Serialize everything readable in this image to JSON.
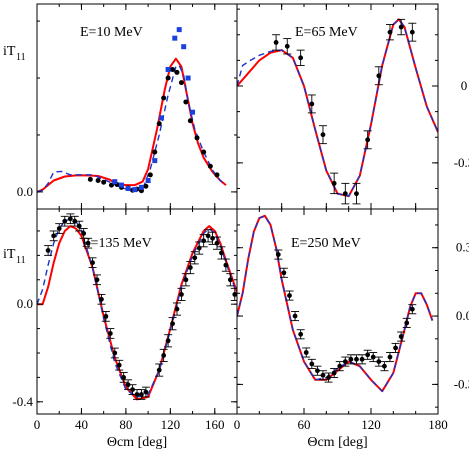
{
  "chart_data": [
    {
      "type": "line",
      "panel": "top-left",
      "annotation": "E=10 MeV",
      "ylabel": "iT",
      "ylabel_sub": "11",
      "xlim": [
        0,
        180
      ],
      "ylim": [
        -0.03,
        0.33
      ],
      "y_ticks": [
        {
          "v": 0.0,
          "label": "0.0"
        }
      ],
      "x_ticks": [
        0,
        40,
        80,
        120,
        160
      ],
      "series": [
        {
          "role": "red-solid",
          "x": [
            0,
            5,
            15,
            25,
            35,
            45,
            55,
            65,
            72,
            80,
            88,
            95,
            100,
            108,
            115,
            120,
            125,
            130,
            135,
            140,
            145,
            150,
            158,
            165,
            170
          ],
          "y": [
            0.0,
            0.004,
            0.02,
            0.027,
            0.029,
            0.029,
            0.028,
            0.022,
            0.014,
            0.012,
            0.012,
            0.018,
            0.04,
            0.11,
            0.18,
            0.22,
            0.234,
            0.22,
            0.17,
            0.12,
            0.085,
            0.06,
            0.035,
            0.02,
            0.012
          ]
        },
        {
          "role": "blue-dashed",
          "x": [
            0,
            5,
            10,
            15,
            22,
            30,
            40,
            50,
            60,
            68,
            75,
            82,
            90,
            96,
            102,
            110,
            118,
            125,
            128,
            132,
            136,
            142,
            150,
            158,
            165,
            170
          ],
          "y": [
            0.0,
            0.003,
            0.015,
            0.035,
            0.036,
            0.03,
            0.03,
            0.03,
            0.022,
            0.015,
            0.008,
            0.004,
            0.003,
            0.01,
            0.04,
            0.1,
            0.17,
            0.22,
            0.222,
            0.205,
            0.16,
            0.11,
            0.07,
            0.038,
            0.02,
            0.012
          ]
        },
        {
          "role": "black-points",
          "x": [
            48,
            55,
            60,
            67,
            72,
            76,
            82,
            86,
            90,
            94,
            98,
            102,
            106,
            110,
            114,
            118,
            122,
            126,
            130,
            134,
            138,
            144,
            150,
            156,
            162
          ],
          "y": [
            0.022,
            0.02,
            0.017,
            0.012,
            0.013,
            0.008,
            0.007,
            0.003,
            0.005,
            0.002,
            0.01,
            0.03,
            0.07,
            0.12,
            0.165,
            0.2,
            0.215,
            0.21,
            0.192,
            0.158,
            0.125,
            0.095,
            0.07,
            0.045,
            0.03
          ]
        },
        {
          "role": "blue-squares",
          "x": [
            70,
            76,
            82,
            88,
            94,
            100,
            106,
            112,
            118,
            124,
            128,
            132,
            136,
            140
          ],
          "y": [
            0.018,
            0.012,
            0.006,
            0.004,
            0.008,
            0.02,
            0.055,
            0.13,
            0.215,
            0.27,
            0.285,
            0.255,
            0.2,
            0.14
          ]
        }
      ]
    },
    {
      "type": "line",
      "panel": "top-right",
      "annotation": "E=65 MeV",
      "xlim": [
        0,
        180
      ],
      "ylim": [
        -0.48,
        0.32
      ],
      "y_ticks": [
        {
          "v": 0.0,
          "label": "0"
        },
        {
          "v": -0.3,
          "label": "-0.3"
        }
      ],
      "x_ticks": [
        0,
        40,
        80,
        120,
        160
      ],
      "series": [
        {
          "role": "red-solid",
          "x": [
            0,
            10,
            20,
            30,
            40,
            50,
            60,
            70,
            80,
            90,
            100,
            110,
            120,
            130,
            140,
            145,
            150,
            160,
            170,
            180
          ],
          "y": [
            0.0,
            0.05,
            0.1,
            0.13,
            0.14,
            0.11,
            0.0,
            -0.17,
            -0.33,
            -0.42,
            -0.43,
            -0.35,
            -0.15,
            0.08,
            0.24,
            0.26,
            0.23,
            0.07,
            -0.08,
            -0.18
          ]
        },
        {
          "role": "blue-dashed",
          "x": [
            0,
            5,
            12,
            20,
            30,
            40,
            50,
            60,
            70,
            80,
            90,
            100,
            110,
            120,
            130,
            140,
            145,
            150,
            160,
            170,
            180
          ],
          "y": [
            0.0,
            0.08,
            0.1,
            0.12,
            0.135,
            0.14,
            0.11,
            0.0,
            -0.17,
            -0.33,
            -0.42,
            -0.43,
            -0.35,
            -0.15,
            0.08,
            0.24,
            0.26,
            0.23,
            0.07,
            -0.08,
            -0.18
          ]
        }
      ],
      "points": [
        {
          "x": 35,
          "y": 0.17,
          "err": 0.03
        },
        {
          "x": 45,
          "y": 0.155,
          "err": 0.03
        },
        {
          "x": 57,
          "y": 0.11,
          "err": 0.03
        },
        {
          "x": 67,
          "y": -0.07,
          "err": 0.035
        },
        {
          "x": 77,
          "y": -0.19,
          "err": 0.035
        },
        {
          "x": 87,
          "y": -0.38,
          "err": 0.04
        },
        {
          "x": 97,
          "y": -0.42,
          "err": 0.04
        },
        {
          "x": 107,
          "y": -0.42,
          "err": 0.04
        },
        {
          "x": 117,
          "y": -0.21,
          "err": 0.035
        },
        {
          "x": 127,
          "y": 0.04,
          "err": 0.035
        },
        {
          "x": 137,
          "y": 0.21,
          "err": 0.03
        },
        {
          "x": 147,
          "y": 0.23,
          "err": 0.03
        },
        {
          "x": 157,
          "y": 0.21,
          "err": 0.035
        }
      ]
    },
    {
      "type": "line",
      "panel": "bottom-left",
      "annotation": "E=135 MeV",
      "ylabel": "iT",
      "ylabel_sub": "11",
      "xlabel": "Θcm [deg]",
      "xlim": [
        0,
        180
      ],
      "ylim": [
        -0.45,
        0.39
      ],
      "y_ticks": [
        {
          "v": 0.0,
          "label": "0.0"
        },
        {
          "v": -0.4,
          "label": "-0.4"
        }
      ],
      "x_ticks": [
        {
          "v": 0,
          "label": "0"
        },
        {
          "v": 40,
          "label": "40"
        },
        {
          "v": 80,
          "label": "80"
        },
        {
          "v": 120,
          "label": "120"
        },
        {
          "v": 160,
          "label": "160"
        }
      ],
      "series": [
        {
          "role": "red-solid",
          "x": [
            0,
            5,
            10,
            15,
            20,
            25,
            30,
            35,
            40,
            50,
            60,
            70,
            80,
            90,
            100,
            110,
            120,
            130,
            140,
            150,
            155,
            160,
            165,
            170,
            180
          ],
          "y": [
            0.0,
            0.0,
            0.07,
            0.17,
            0.25,
            0.3,
            0.32,
            0.31,
            0.28,
            0.15,
            -0.05,
            -0.22,
            -0.34,
            -0.39,
            -0.38,
            -0.27,
            -0.1,
            0.08,
            0.21,
            0.3,
            0.32,
            0.3,
            0.25,
            0.18,
            0.05
          ]
        },
        {
          "role": "blue-dashed",
          "x": [
            0,
            5,
            10,
            15,
            20,
            25,
            30,
            35,
            40,
            50,
            60,
            70,
            80,
            90,
            100,
            110,
            120,
            130,
            140,
            150,
            155,
            160,
            165,
            170,
            180
          ],
          "y": [
            0.0,
            0.06,
            0.16,
            0.25,
            0.31,
            0.34,
            0.35,
            0.34,
            0.3,
            0.15,
            -0.06,
            -0.24,
            -0.35,
            -0.38,
            -0.37,
            -0.27,
            -0.11,
            0.07,
            0.2,
            0.29,
            0.31,
            0.29,
            0.24,
            0.17,
            0.04
          ]
        }
      ],
      "points": [
        {
          "x": 10,
          "y": 0.22,
          "err": 0.02
        },
        {
          "x": 15,
          "y": 0.28,
          "err": 0.02
        },
        {
          "x": 20,
          "y": 0.31,
          "err": 0.02
        },
        {
          "x": 25,
          "y": 0.34,
          "err": 0.02
        },
        {
          "x": 30,
          "y": 0.35,
          "err": 0.02
        },
        {
          "x": 34,
          "y": 0.34,
          "err": 0.02
        },
        {
          "x": 38,
          "y": 0.32,
          "err": 0.02
        },
        {
          "x": 42,
          "y": 0.29,
          "err": 0.02
        },
        {
          "x": 46,
          "y": 0.25,
          "err": 0.02
        },
        {
          "x": 50,
          "y": 0.17,
          "err": 0.02
        },
        {
          "x": 54,
          "y": 0.1,
          "err": 0.02
        },
        {
          "x": 58,
          "y": 0.02,
          "err": 0.02
        },
        {
          "x": 62,
          "y": -0.05,
          "err": 0.02
        },
        {
          "x": 66,
          "y": -0.12,
          "err": 0.02
        },
        {
          "x": 70,
          "y": -0.2,
          "err": 0.02
        },
        {
          "x": 74,
          "y": -0.25,
          "err": 0.02
        },
        {
          "x": 78,
          "y": -0.3,
          "err": 0.02
        },
        {
          "x": 82,
          "y": -0.33,
          "err": 0.02
        },
        {
          "x": 86,
          "y": -0.35,
          "err": 0.02
        },
        {
          "x": 90,
          "y": -0.37,
          "err": 0.02
        },
        {
          "x": 94,
          "y": -0.37,
          "err": 0.02
        },
        {
          "x": 98,
          "y": -0.36,
          "err": 0.02
        },
        {
          "x": 110,
          "y": -0.27,
          "err": 0.025
        },
        {
          "x": 114,
          "y": -0.21,
          "err": 0.025
        },
        {
          "x": 118,
          "y": -0.15,
          "err": 0.025
        },
        {
          "x": 122,
          "y": -0.08,
          "err": 0.025
        },
        {
          "x": 126,
          "y": -0.02,
          "err": 0.025
        },
        {
          "x": 130,
          "y": 0.04,
          "err": 0.025
        },
        {
          "x": 134,
          "y": 0.1,
          "err": 0.025
        },
        {
          "x": 138,
          "y": 0.15,
          "err": 0.025
        },
        {
          "x": 142,
          "y": 0.19,
          "err": 0.025
        },
        {
          "x": 146,
          "y": 0.23,
          "err": 0.025
        },
        {
          "x": 150,
          "y": 0.26,
          "err": 0.025
        },
        {
          "x": 154,
          "y": 0.28,
          "err": 0.025
        },
        {
          "x": 158,
          "y": 0.27,
          "err": 0.025
        },
        {
          "x": 162,
          "y": 0.25,
          "err": 0.025
        },
        {
          "x": 166,
          "y": 0.21,
          "err": 0.025
        },
        {
          "x": 170,
          "y": 0.16,
          "err": 0.025
        },
        {
          "x": 174,
          "y": 0.1,
          "err": 0.025
        },
        {
          "x": 178,
          "y": 0.04,
          "err": 0.025
        }
      ]
    },
    {
      "type": "line",
      "panel": "bottom-right",
      "annotation": "E=250 MeV",
      "xlabel": "Θcm [deg]",
      "xlim": [
        0,
        180
      ],
      "ylim": [
        -0.43,
        0.47
      ],
      "y_ticks": [
        {
          "v": 0.3,
          "label": "0.3"
        },
        {
          "v": 0.0,
          "label": "0.0"
        },
        {
          "v": -0.3,
          "label": "-0.3"
        }
      ],
      "x_ticks": [
        {
          "v": 0,
          "label": "0"
        },
        {
          "v": 60,
          "label": "60"
        },
        {
          "v": 120,
          "label": "120"
        },
        {
          "v": 180,
          "label": "180"
        }
      ],
      "series": [
        {
          "role": "red-solid",
          "x": [
            0,
            5,
            10,
            15,
            20,
            25,
            30,
            35,
            40,
            50,
            60,
            70,
            80,
            90,
            100,
            110,
            120,
            130,
            140,
            150,
            155,
            160,
            165,
            170,
            175
          ],
          "y": [
            0.0,
            0.1,
            0.25,
            0.37,
            0.43,
            0.44,
            0.4,
            0.3,
            0.16,
            -0.06,
            -0.2,
            -0.28,
            -0.28,
            -0.24,
            -0.2,
            -0.22,
            -0.28,
            -0.33,
            -0.25,
            -0.06,
            0.04,
            0.1,
            0.1,
            0.05,
            -0.02
          ]
        },
        {
          "role": "blue-dashed",
          "x": [
            0,
            5,
            10,
            15,
            20,
            25,
            30,
            35,
            40,
            50,
            60,
            70,
            80,
            90,
            100,
            110,
            120,
            130,
            140,
            150,
            155,
            160,
            165,
            170,
            175
          ],
          "y": [
            0.0,
            0.1,
            0.25,
            0.37,
            0.43,
            0.44,
            0.4,
            0.3,
            0.16,
            -0.06,
            -0.2,
            -0.28,
            -0.27,
            -0.23,
            -0.2,
            -0.22,
            -0.28,
            -0.33,
            -0.25,
            -0.06,
            0.04,
            0.1,
            0.1,
            0.05,
            -0.02
          ]
        }
      ],
      "points": [
        {
          "x": 37,
          "y": 0.27,
          "err": 0.02
        },
        {
          "x": 42,
          "y": 0.19,
          "err": 0.02
        },
        {
          "x": 47,
          "y": 0.09,
          "err": 0.02
        },
        {
          "x": 52,
          "y": 0.0,
          "err": 0.02
        },
        {
          "x": 57,
          "y": -0.08,
          "err": 0.02
        },
        {
          "x": 62,
          "y": -0.16,
          "err": 0.02
        },
        {
          "x": 67,
          "y": -0.21,
          "err": 0.02
        },
        {
          "x": 72,
          "y": -0.24,
          "err": 0.02
        },
        {
          "x": 77,
          "y": -0.26,
          "err": 0.02
        },
        {
          "x": 82,
          "y": -0.27,
          "err": 0.02
        },
        {
          "x": 87,
          "y": -0.25,
          "err": 0.02
        },
        {
          "x": 92,
          "y": -0.22,
          "err": 0.02
        },
        {
          "x": 97,
          "y": -0.2,
          "err": 0.02
        },
        {
          "x": 102,
          "y": -0.19,
          "err": 0.02
        },
        {
          "x": 107,
          "y": -0.19,
          "err": 0.02
        },
        {
          "x": 112,
          "y": -0.19,
          "err": 0.02
        },
        {
          "x": 117,
          "y": -0.17,
          "err": 0.02
        },
        {
          "x": 122,
          "y": -0.18,
          "err": 0.02
        },
        {
          "x": 127,
          "y": -0.2,
          "err": 0.02
        },
        {
          "x": 132,
          "y": -0.22,
          "err": 0.02
        },
        {
          "x": 137,
          "y": -0.18,
          "err": 0.02
        },
        {
          "x": 142,
          "y": -0.14,
          "err": 0.02
        },
        {
          "x": 147,
          "y": -0.09,
          "err": 0.02
        },
        {
          "x": 152,
          "y": -0.03,
          "err": 0.02
        },
        {
          "x": 157,
          "y": 0.03,
          "err": 0.02
        }
      ]
    }
  ],
  "colors": {
    "red": "#ff0000",
    "blue": "#1a33cc",
    "points": "#000000",
    "squares": "#1a40e0"
  }
}
